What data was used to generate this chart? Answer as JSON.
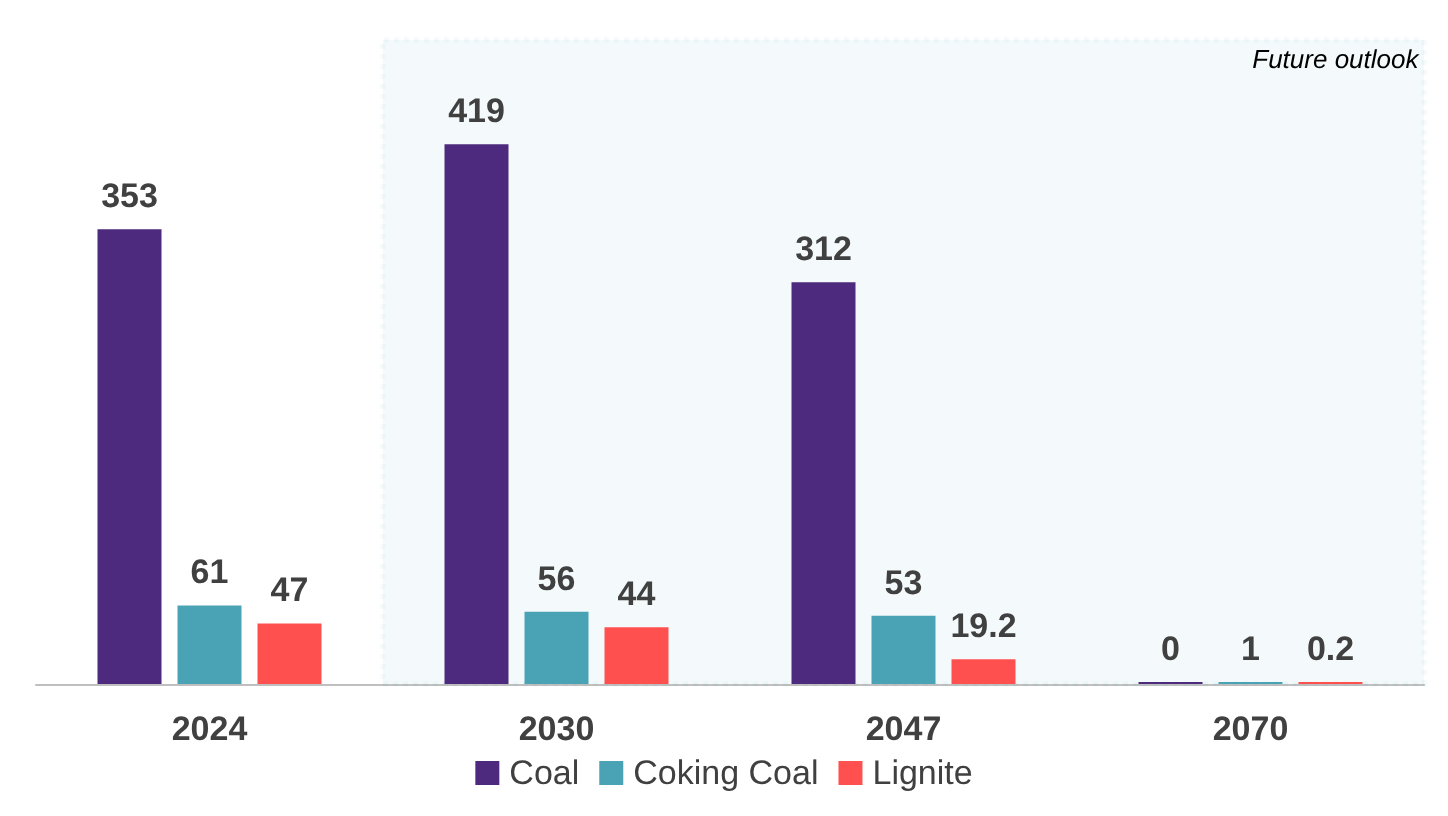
{
  "chart_data": {
    "type": "bar",
    "categories": [
      "2024",
      "2030",
      "2047",
      "2070"
    ],
    "series": [
      {
        "name": "Coal",
        "color": "#4e2a7e",
        "values": [
          353,
          419,
          312,
          0
        ]
      },
      {
        "name": "Coking Coal",
        "color": "#4aa3b5",
        "values": [
          61,
          56,
          53,
          1
        ]
      },
      {
        "name": "Lignite",
        "color": "#ff5050",
        "values": [
          47,
          44,
          19.2,
          0.2
        ]
      }
    ],
    "bands": [
      {
        "axis": "x",
        "from": "2030",
        "to": "2070",
        "label": "Future outlook",
        "color": "#4aa3b5"
      }
    ],
    "data_labels": true,
    "legend": "bottom",
    "grid": false
  }
}
